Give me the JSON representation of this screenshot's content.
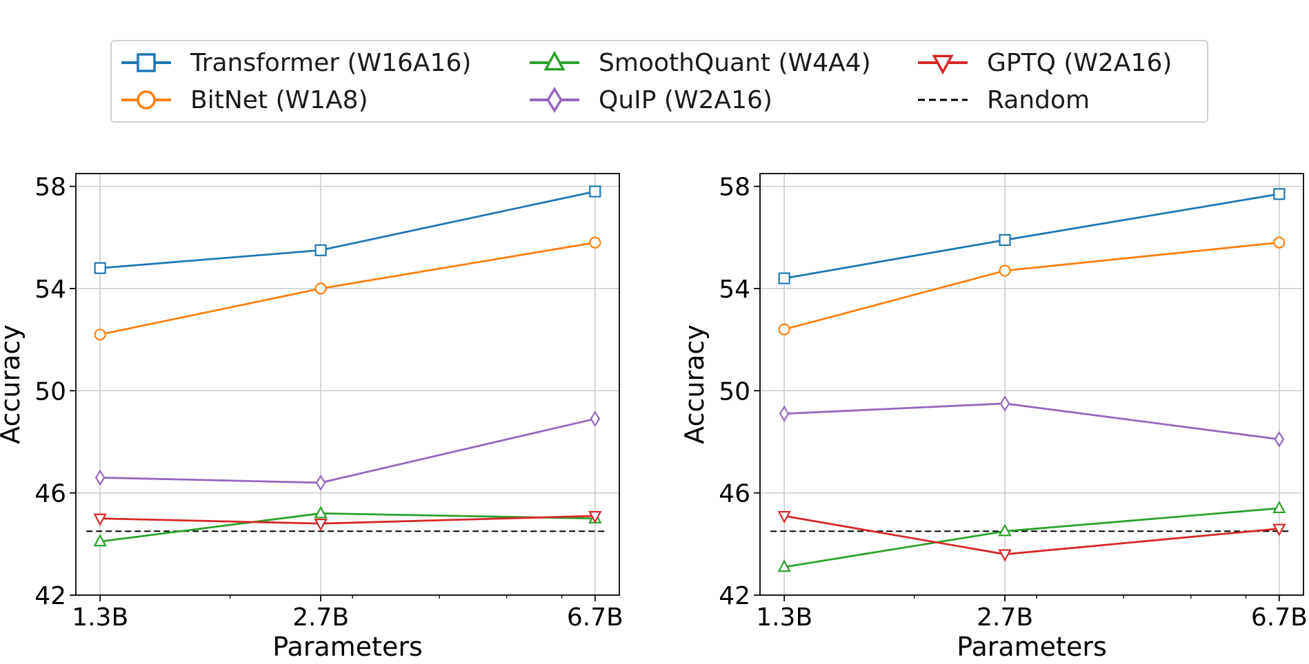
{
  "legend": [
    {
      "name": "Transformer (W16A16)",
      "color": "#1f77b4",
      "marker": "square",
      "dash": false
    },
    {
      "name": "BitNet (W1A8)",
      "color": "#ff7f0e",
      "marker": "circle",
      "dash": false
    },
    {
      "name": "SmoothQuant (W4A4)",
      "color": "#2ca02c",
      "marker": "triangle-up",
      "dash": false
    },
    {
      "name": "QuIP (W2A16)",
      "color": "#9467bd",
      "marker": "diamond",
      "dash": false
    },
    {
      "name": "GPTQ (W2A16)",
      "color": "#d62728",
      "marker": "triangle-down",
      "dash": false
    },
    {
      "name": "Random",
      "color": "#000000",
      "marker": "none",
      "dash": true
    }
  ],
  "chart_data": [
    {
      "type": "line",
      "xlabel": "Parameters",
      "ylabel": "Accuracy",
      "categories": [
        "1.3B",
        "2.7B",
        "6.7B"
      ],
      "x_scale": "log",
      "ylim": [
        42,
        58.5
      ],
      "yticks": [
        42,
        46,
        50,
        54,
        58
      ],
      "grid": true,
      "series": [
        {
          "name": "Transformer (W16A16)",
          "values": [
            54.8,
            55.5,
            57.8
          ]
        },
        {
          "name": "BitNet (W1A8)",
          "values": [
            52.2,
            54.0,
            55.8
          ]
        },
        {
          "name": "SmoothQuant (W4A4)",
          "values": [
            44.1,
            45.2,
            45.0
          ]
        },
        {
          "name": "QuIP (W2A16)",
          "values": [
            46.6,
            46.4,
            48.9
          ]
        },
        {
          "name": "GPTQ (W2A16)",
          "values": [
            45.0,
            44.8,
            45.1
          ]
        }
      ],
      "reference_line": {
        "name": "Random",
        "value": 44.5
      }
    },
    {
      "type": "line",
      "xlabel": "Parameters",
      "ylabel": "Accuracy",
      "categories": [
        "1.3B",
        "2.7B",
        "6.7B"
      ],
      "x_scale": "log",
      "ylim": [
        42,
        58.5
      ],
      "yticks": [
        42,
        46,
        50,
        54,
        58
      ],
      "grid": true,
      "series": [
        {
          "name": "Transformer (W16A16)",
          "values": [
            54.4,
            55.9,
            57.7
          ]
        },
        {
          "name": "BitNet (W1A8)",
          "values": [
            52.4,
            54.7,
            55.8
          ]
        },
        {
          "name": "SmoothQuant (W4A4)",
          "values": [
            43.1,
            44.5,
            45.4
          ]
        },
        {
          "name": "QuIP (W2A16)",
          "values": [
            49.1,
            49.5,
            48.1
          ]
        },
        {
          "name": "GPTQ (W2A16)",
          "values": [
            45.1,
            43.6,
            44.6
          ]
        }
      ],
      "reference_line": {
        "name": "Random",
        "value": 44.5
      }
    }
  ]
}
